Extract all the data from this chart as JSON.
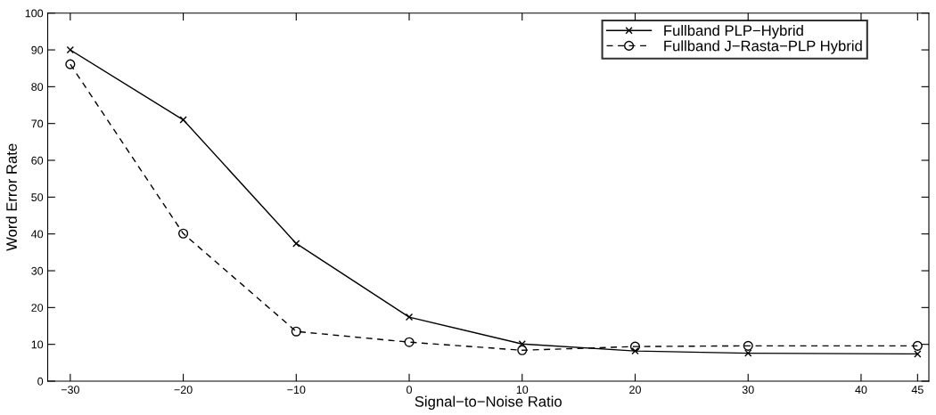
{
  "chart_data": {
    "type": "line",
    "xlabel": "Signal−to−Noise Ratio",
    "ylabel": "Word Error Rate",
    "x": [
      -30,
      -20,
      -10,
      0,
      10,
      20,
      30,
      45
    ],
    "series": [
      {
        "name": "Fullband PLP−Hybrid",
        "color": "#000000",
        "marker": "cross",
        "line_style": "solid",
        "values": [
          90,
          71,
          37.4,
          17.4,
          10.1,
          8.2,
          7.6,
          7.4
        ]
      },
      {
        "name": "Fullband J−Rasta−PLP Hybrid",
        "color": "#000000",
        "marker": "circle",
        "line_style": "dashed",
        "values": [
          86.1,
          40.1,
          13.5,
          10.6,
          8.4,
          9.4,
          9.6,
          9.6
        ]
      }
    ],
    "xlim": [
      -32,
      46
    ],
    "xticks": [
      -30,
      -20,
      -10,
      0,
      10,
      20,
      30,
      40,
      45
    ],
    "ylim": [
      0,
      100
    ],
    "yticks": [
      0,
      10,
      20,
      30,
      40,
      50,
      60,
      70,
      80,
      90,
      100
    ],
    "grid": false,
    "legend": "top right"
  }
}
